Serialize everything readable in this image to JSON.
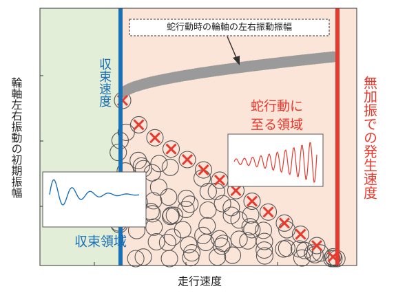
{
  "y_axis_label": "輪軸左右振動の初期振幅",
  "x_axis_label": "走行速度",
  "callout": "蛇行動時の輪軸の左右振動振幅",
  "convergence_speed": "収束速度",
  "hunting_region": [
    "蛇行動に",
    "至る領域"
  ],
  "onset_speed": "無加振での発生速度",
  "convergence_region": "収束領域"
}
